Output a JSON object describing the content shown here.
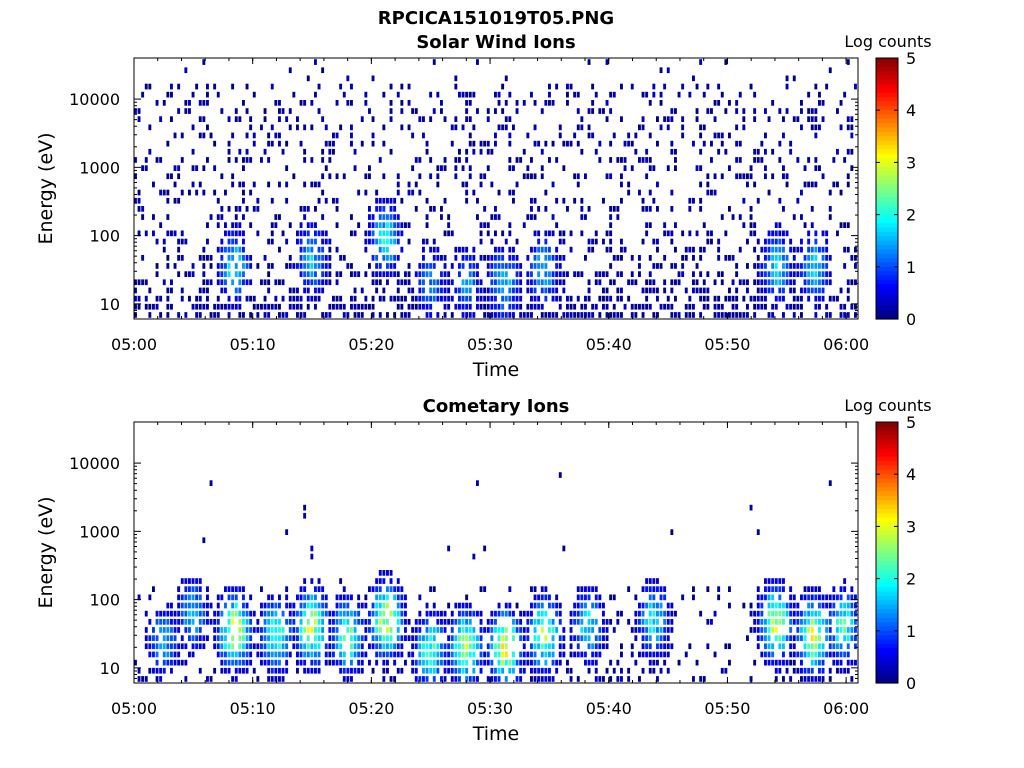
{
  "figure": {
    "title": "RPCICA151019T05.PNG"
  },
  "chart_data": [
    {
      "type": "heatmap",
      "title": "Solar Wind Ions",
      "xlabel": "Time",
      "ylabel": "Energy (eV)",
      "x_ticks": [
        "05:00",
        "05:10",
        "05:20",
        "05:30",
        "05:40",
        "05:50",
        "06:00"
      ],
      "xlim": [
        "05:00",
        "06:01"
      ],
      "y_scale": "log",
      "y_ticks": [
        10,
        100,
        1000,
        10000
      ],
      "y_tick_labels": [
        "10",
        "100",
        "1000",
        "10000"
      ],
      "ylim": [
        6,
        40000
      ],
      "colorbar": {
        "label": "Log counts",
        "ticks": [
          0,
          1,
          2,
          3,
          4,
          5
        ],
        "range": [
          0,
          5
        ],
        "colormap": "jet"
      },
      "blobs": [
        {
          "t_min": 8.5,
          "e": 35,
          "peak_log": 1.8
        },
        {
          "t_min": 15.0,
          "e": 45,
          "peak_log": 1.6
        },
        {
          "t_min": 21.2,
          "e": 90,
          "peak_log": 1.9
        },
        {
          "t_min": 25.0,
          "e": 20,
          "peak_log": 1.3
        },
        {
          "t_min": 28.0,
          "e": 20,
          "peak_log": 1.4
        },
        {
          "t_min": 31.2,
          "e": 20,
          "peak_log": 1.7
        },
        {
          "t_min": 34.5,
          "e": 30,
          "peak_log": 1.6
        },
        {
          "t_min": 54.2,
          "e": 35,
          "peak_log": 1.7
        },
        {
          "t_min": 57.3,
          "e": 35,
          "peak_log": 1.7
        }
      ]
    },
    {
      "type": "heatmap",
      "title": "Cometary Ions",
      "xlabel": "Time",
      "ylabel": "Energy (eV)",
      "x_ticks": [
        "05:00",
        "05:10",
        "05:20",
        "05:30",
        "05:40",
        "05:50",
        "06:00"
      ],
      "xlim": [
        "05:00",
        "06:01"
      ],
      "y_scale": "log",
      "y_ticks": [
        10,
        100,
        1000,
        10000
      ],
      "y_tick_labels": [
        "10",
        "100",
        "1000",
        "10000"
      ],
      "ylim": [
        6,
        40000
      ],
      "colorbar": {
        "label": "Log counts",
        "ticks": [
          0,
          1,
          2,
          3,
          4,
          5
        ],
        "range": [
          0,
          5
        ],
        "colormap": "jet"
      },
      "blobs": [
        {
          "t_min": 2.5,
          "e": 25,
          "peak_log": 1.5
        },
        {
          "t_min": 5.0,
          "e": 60,
          "peak_log": 1.6
        },
        {
          "t_min": 8.5,
          "e": 35,
          "peak_log": 3.0
        },
        {
          "t_min": 12.0,
          "e": 30,
          "peak_log": 2.3
        },
        {
          "t_min": 15.0,
          "e": 40,
          "peak_log": 2.9
        },
        {
          "t_min": 18.0,
          "e": 30,
          "peak_log": 2.4
        },
        {
          "t_min": 21.3,
          "e": 50,
          "peak_log": 3.0
        },
        {
          "t_min": 25.0,
          "e": 18,
          "peak_log": 2.3
        },
        {
          "t_min": 28.0,
          "e": 20,
          "peak_log": 2.7
        },
        {
          "t_min": 31.3,
          "e": 20,
          "peak_log": 3.0
        },
        {
          "t_min": 34.6,
          "e": 30,
          "peak_log": 2.6
        },
        {
          "t_min": 38.3,
          "e": 40,
          "peak_log": 1.9
        },
        {
          "t_min": 43.8,
          "e": 50,
          "peak_log": 1.9
        },
        {
          "t_min": 54.1,
          "e": 45,
          "peak_log": 2.9
        },
        {
          "t_min": 57.3,
          "e": 30,
          "peak_log": 2.9
        },
        {
          "t_min": 59.8,
          "e": 40,
          "peak_log": 2.2
        }
      ]
    }
  ]
}
